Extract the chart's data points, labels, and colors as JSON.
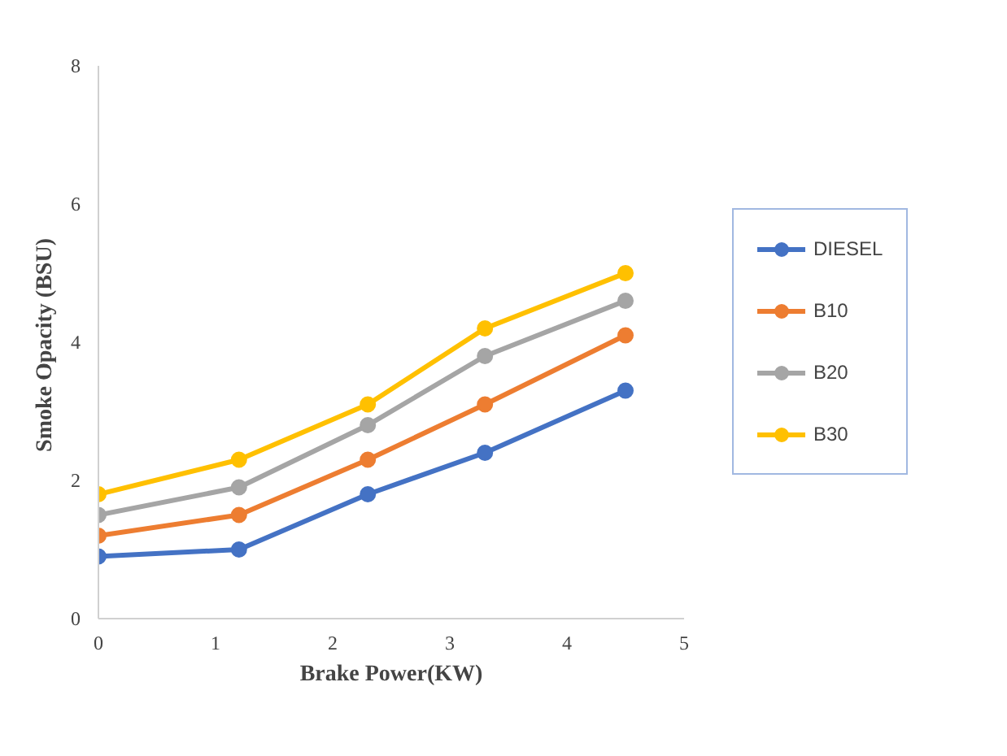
{
  "chart_data": {
    "type": "line",
    "xlabel": "Brake Power(KW)",
    "ylabel": "Smoke  Opacity (BSU)",
    "x": [
      0,
      1.2,
      2.3,
      3.3,
      4.5
    ],
    "series": [
      {
        "name": "DIESEL",
        "color": "#4472c4",
        "values": [
          0.9,
          1.0,
          1.8,
          2.4,
          3.3
        ]
      },
      {
        "name": "B10",
        "color": "#ed7d31",
        "values": [
          1.2,
          1.5,
          2.3,
          3.1,
          4.1
        ]
      },
      {
        "name": "B20",
        "color": "#a5a5a5",
        "values": [
          1.5,
          1.9,
          2.8,
          3.8,
          4.6
        ]
      },
      {
        "name": "B30",
        "color": "#ffc000",
        "values": [
          1.8,
          2.3,
          3.1,
          4.2,
          5.0
        ]
      }
    ],
    "xlim": [
      0,
      5
    ],
    "ylim": [
      0,
      8
    ],
    "xticks": [
      0,
      1,
      2,
      3,
      4,
      5
    ],
    "yticks": [
      0,
      2,
      4,
      6,
      8
    ],
    "grid": false,
    "legend": "right",
    "marker": "circle",
    "line_style": "solid"
  }
}
